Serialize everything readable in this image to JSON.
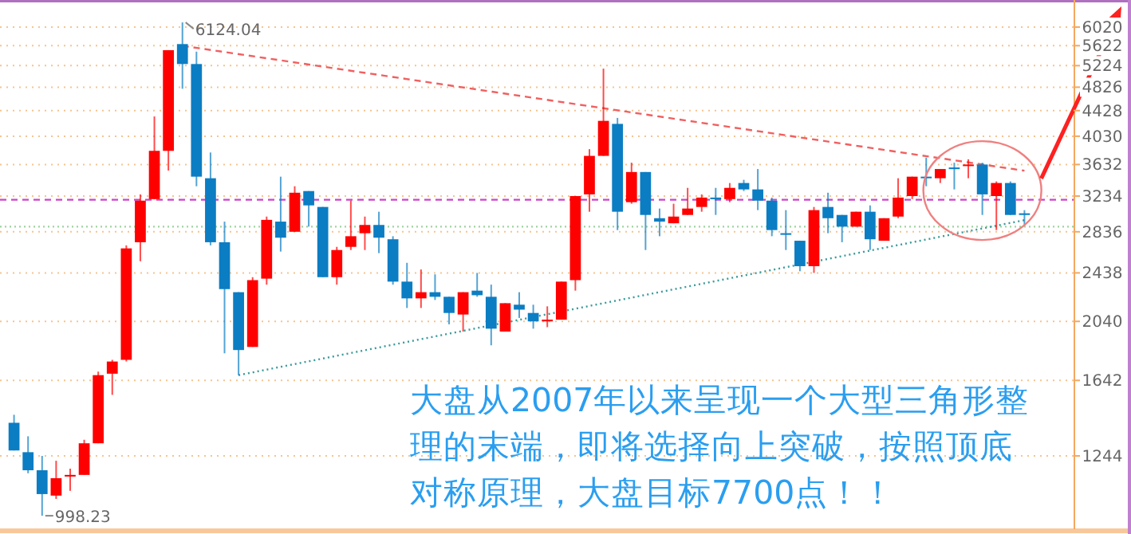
{
  "chart_data": {
    "type": "candlestick",
    "log": "y",
    "grid": "y",
    "tick_labels": "y",
    "categories": [
      null,
      null,
      null,
      null,
      null,
      null,
      null,
      null,
      null,
      null,
      null,
      null,
      null,
      null,
      null,
      null,
      null,
      null,
      null,
      null,
      null,
      null,
      null,
      null,
      null,
      null,
      null,
      null,
      null,
      null,
      null,
      null,
      null,
      null,
      null,
      null,
      null,
      null,
      null,
      null,
      null,
      null,
      null,
      null,
      null,
      null,
      null,
      null,
      null,
      null,
      null,
      null,
      null,
      null,
      null,
      null,
      null,
      null,
      null,
      null,
      null,
      null,
      null,
      null,
      null,
      null,
      null,
      null,
      null,
      null,
      null,
      null,
      null
    ],
    "ohlc": [
      [
        1405,
        1447,
        1269,
        1269
      ],
      [
        1261,
        1337,
        1167,
        1180
      ],
      [
        1180,
        1244,
        998.23,
        1081
      ],
      [
        1075,
        1222,
        1062,
        1146
      ],
      [
        1153,
        1187,
        1094,
        1160
      ],
      [
        1160,
        1320,
        1160,
        1303
      ],
      [
        1303,
        1696,
        1303,
        1674
      ],
      [
        1683,
        1771,
        1557,
        1760
      ],
      [
        1771,
        2698,
        1760,
        2668
      ],
      [
        2729,
        3254,
        2545,
        3180
      ],
      [
        3198,
        4334,
        3198,
        3819
      ],
      [
        3819,
        5530,
        3552,
        5530
      ],
      [
        5655,
        6124.04,
        4798,
        5255
      ],
      [
        5255,
        5500,
        3353,
        3473
      ],
      [
        3453,
        3796,
        2698,
        2729
      ],
      [
        2729,
        2944,
        1814,
        2297
      ],
      [
        2271,
        2271,
        1674,
        1836
      ],
      [
        1857,
        2400,
        1857,
        2374
      ],
      [
        2387,
        2999,
        2335,
        2963
      ],
      [
        2944,
        3473,
        2637,
        2775
      ],
      [
        2836,
        3353,
        2836,
        3274
      ],
      [
        3294,
        3294,
        2890,
        3125
      ],
      [
        3107,
        3107,
        2400,
        2400
      ],
      [
        2400,
        2683,
        2335,
        2652
      ],
      [
        2683,
        3180,
        2652,
        2790
      ],
      [
        2821,
        2999,
        2652,
        2908
      ],
      [
        2908,
        3053,
        2622,
        2775
      ],
      [
        2759,
        2790,
        2335,
        2361
      ],
      [
        2361,
        2530,
        2143,
        2220
      ],
      [
        2220,
        2469,
        2143,
        2271
      ],
      [
        2271,
        2425,
        2207,
        2233
      ],
      [
        2233,
        2233,
        2018,
        2104
      ],
      [
        2092,
        2271,
        1965,
        2271
      ],
      [
        2284,
        2438,
        2233,
        2246
      ],
      [
        2233,
        2335,
        1868,
        1986
      ],
      [
        1965,
        2181,
        1965,
        2181
      ],
      [
        2169,
        2271,
        2066,
        2130
      ],
      [
        2104,
        2169,
        1986,
        2040
      ],
      [
        2040,
        2156,
        1997,
        2053
      ],
      [
        2053,
        2361,
        2053,
        2361
      ],
      [
        2374,
        3234,
        2284,
        3234
      ],
      [
        3254,
        3843,
        3053,
        3749
      ],
      [
        3749,
        5167,
        3749,
        4264
      ],
      [
        4217,
        4311,
        2854,
        3053
      ],
      [
        3162,
        3656,
        3144,
        3533
      ],
      [
        3533,
        3533,
        2652,
        3017
      ],
      [
        2981,
        3089,
        2790,
        2944
      ],
      [
        2926,
        3144,
        2926,
        2999
      ],
      [
        3017,
        3333,
        3017,
        3089
      ],
      [
        3107,
        3254,
        3053,
        3216
      ],
      [
        3216,
        3333,
        3017,
        3198
      ],
      [
        3198,
        3393,
        3162,
        3333
      ],
      [
        3393,
        3433,
        3294,
        3314
      ],
      [
        3314,
        3572,
        3071,
        3180
      ],
      [
        3180,
        3216,
        2790,
        2854
      ],
      [
        2821,
        3071,
        2652,
        2805
      ],
      [
        2744,
        2744,
        2453,
        2499
      ],
      [
        2499,
        3107,
        2438,
        3071
      ],
      [
        3107,
        3274,
        2821,
        2981
      ],
      [
        3017,
        3017,
        2729,
        2890
      ],
      [
        2890,
        3053,
        2890,
        3053
      ],
      [
        3053,
        3125,
        2652,
        2759
      ],
      [
        2744,
        2981,
        2744,
        2981
      ],
      [
        2999,
        3453,
        2981,
        3216
      ],
      [
        3234,
        3473,
        3198,
        3473
      ],
      [
        3473,
        3726,
        3353,
        3453
      ],
      [
        3453,
        3572,
        3393,
        3572
      ],
      [
        3592,
        3656,
        3314,
        3572
      ],
      [
        3612,
        3702,
        3453,
        3632
      ],
      [
        3632,
        3656,
        3017,
        3254
      ],
      [
        3234,
        3413,
        2854,
        3393
      ],
      [
        3393,
        3413,
        3017,
        3017
      ],
      [
        3035,
        3071,
        2908,
        3017
      ]
    ],
    "colors": [
      "#0b7dc3",
      "#0b7dc3",
      "#0b7dc3",
      "#ff0000",
      "#ff0000",
      "#ff0000",
      "#ff0000",
      "#ff0000",
      "#ff0000",
      "#ff0000",
      "#ff0000",
      "#ff0000",
      "#0b7dc3",
      "#0b7dc3",
      "#0b7dc3",
      "#0b7dc3",
      "#0b7dc3",
      "#ff0000",
      "#ff0000",
      "#0b7dc3",
      "#ff0000",
      "#0b7dc3",
      "#0b7dc3",
      "#ff0000",
      "#ff0000",
      "#ff0000",
      "#0b7dc3",
      "#0b7dc3",
      "#0b7dc3",
      "#ff0000",
      "#0b7dc3",
      "#0b7dc3",
      "#ff0000",
      "#0b7dc3",
      "#0b7dc3",
      "#ff0000",
      "#0b7dc3",
      "#0b7dc3",
      "#ff0000",
      "#ff0000",
      "#ff0000",
      "#ff0000",
      "#ff0000",
      "#0b7dc3",
      "#ff0000",
      "#0b7dc3",
      "#0b7dc3",
      "#ff0000",
      "#ff0000",
      "#ff0000",
      "#0b7dc3",
      "#ff0000",
      "#0b7dc3",
      "#0b7dc3",
      "#0b7dc3",
      "#0b7dc3",
      "#0b7dc3",
      "#ff0000",
      "#0b7dc3",
      "#0b7dc3",
      "#ff0000",
      "#0b7dc3",
      "#ff0000",
      "#ff0000",
      "#ff0000",
      "#0b7dc3",
      "#ff0000",
      "#0b7dc3",
      "#ff0000",
      "#0b7dc3",
      "#ff0000",
      "#0b7dc3",
      "#0b7dc3"
    ],
    "ylim": [
      950,
      6650
    ],
    "yticks": [
      1244,
      1642,
      2040,
      2438,
      2836,
      3234,
      3632,
      4030,
      4428,
      4826,
      5224,
      5622,
      6020
    ],
    "series": [
      {
        "type": "line",
        "values": [
          null,
          null,
          null,
          null,
          null,
          null,
          null,
          null,
          null,
          null,
          null,
          null,
          5620,
          null,
          null,
          null,
          null,
          null,
          null,
          null,
          null,
          null,
          null,
          null,
          null,
          null,
          null,
          null,
          null,
          null,
          null,
          null,
          null,
          null,
          null,
          null,
          null,
          null,
          null,
          null,
          null,
          null,
          null,
          null,
          null,
          null,
          null,
          null,
          null,
          null,
          null,
          null,
          null,
          null,
          null,
          null,
          null,
          null,
          null,
          null,
          null,
          null,
          null,
          null,
          null,
          null,
          null,
          null,
          null,
          null,
          null,
          null,
          3550
        ],
        "color": "#f06060",
        "line_style": "dashed"
      },
      {
        "type": "line",
        "values": [
          null,
          null,
          null,
          null,
          null,
          null,
          null,
          null,
          null,
          null,
          null,
          null,
          null,
          null,
          null,
          null,
          1674,
          null,
          null,
          null,
          null,
          null,
          null,
          null,
          null,
          null,
          null,
          null,
          null,
          null,
          null,
          null,
          null,
          null,
          null,
          null,
          null,
          null,
          null,
          null,
          null,
          null,
          null,
          null,
          null,
          null,
          null,
          null,
          null,
          null,
          null,
          null,
          null,
          null,
          null,
          null,
          null,
          null,
          null,
          null,
          null,
          null,
          null,
          null,
          null,
          null,
          null,
          null,
          null,
          null,
          null,
          null,
          2960
        ],
        "color": "#3a9a9a",
        "line_style": "dotted"
      }
    ],
    "ref_lines": [
      {
        "axis": "y",
        "value": 3190,
        "color": "#cc44cc",
        "line_style": "dashed"
      },
      {
        "axis": "y",
        "value": 2890,
        "color": "#9fd39f",
        "line_style": "dotted"
      }
    ],
    "annotations": [
      "大盘从2007年以来呈现一个大型三角形整理的末端，即将选择向上突破，按照顶底对称原理，大盘目标7700点！！",
      "6124.04",
      "998.23"
    ]
  }
}
